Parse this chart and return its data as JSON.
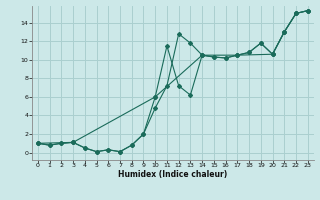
{
  "xlabel": "Humidex (Indice chaleur)",
  "bg_color": "#cce8e8",
  "grid_color": "#aacfcf",
  "line_color": "#1a6b5a",
  "x_ticks": [
    0,
    1,
    2,
    3,
    4,
    5,
    6,
    7,
    8,
    9,
    10,
    11,
    12,
    13,
    14,
    15,
    16,
    17,
    18,
    19,
    20,
    21,
    22,
    23
  ],
  "y_ticks": [
    0,
    2,
    4,
    6,
    8,
    10,
    12,
    14
  ],
  "xlim": [
    -0.5,
    23.5
  ],
  "ylim": [
    -0.8,
    15.8
  ],
  "line1_x": [
    0,
    1,
    2,
    3,
    4,
    5,
    6,
    7,
    8,
    9,
    10,
    11,
    12,
    13,
    14,
    15,
    16,
    17,
    18,
    19,
    20,
    21,
    22,
    23
  ],
  "line1_y": [
    1.0,
    0.8,
    1.0,
    1.1,
    0.5,
    0.1,
    0.3,
    0.1,
    0.8,
    2.0,
    4.8,
    7.2,
    12.8,
    11.8,
    10.5,
    10.3,
    10.2,
    10.5,
    10.8,
    11.8,
    10.6,
    13.0,
    15.0,
    15.3
  ],
  "line2_x": [
    0,
    1,
    2,
    3,
    4,
    5,
    6,
    7,
    8,
    9,
    10,
    11,
    12,
    13,
    14,
    15,
    16,
    17,
    18,
    19,
    20,
    21,
    22,
    23
  ],
  "line2_y": [
    1.0,
    0.8,
    1.0,
    1.1,
    0.5,
    0.1,
    0.3,
    0.1,
    0.8,
    2.0,
    6.0,
    11.5,
    7.2,
    6.2,
    10.5,
    10.3,
    10.2,
    10.5,
    10.8,
    11.8,
    10.6,
    13.0,
    15.0,
    15.3
  ],
  "line3_x": [
    0,
    3,
    10,
    14,
    17,
    20,
    21,
    22,
    23
  ],
  "line3_y": [
    1.0,
    1.1,
    6.0,
    10.5,
    10.5,
    10.6,
    13.0,
    15.0,
    15.3
  ]
}
